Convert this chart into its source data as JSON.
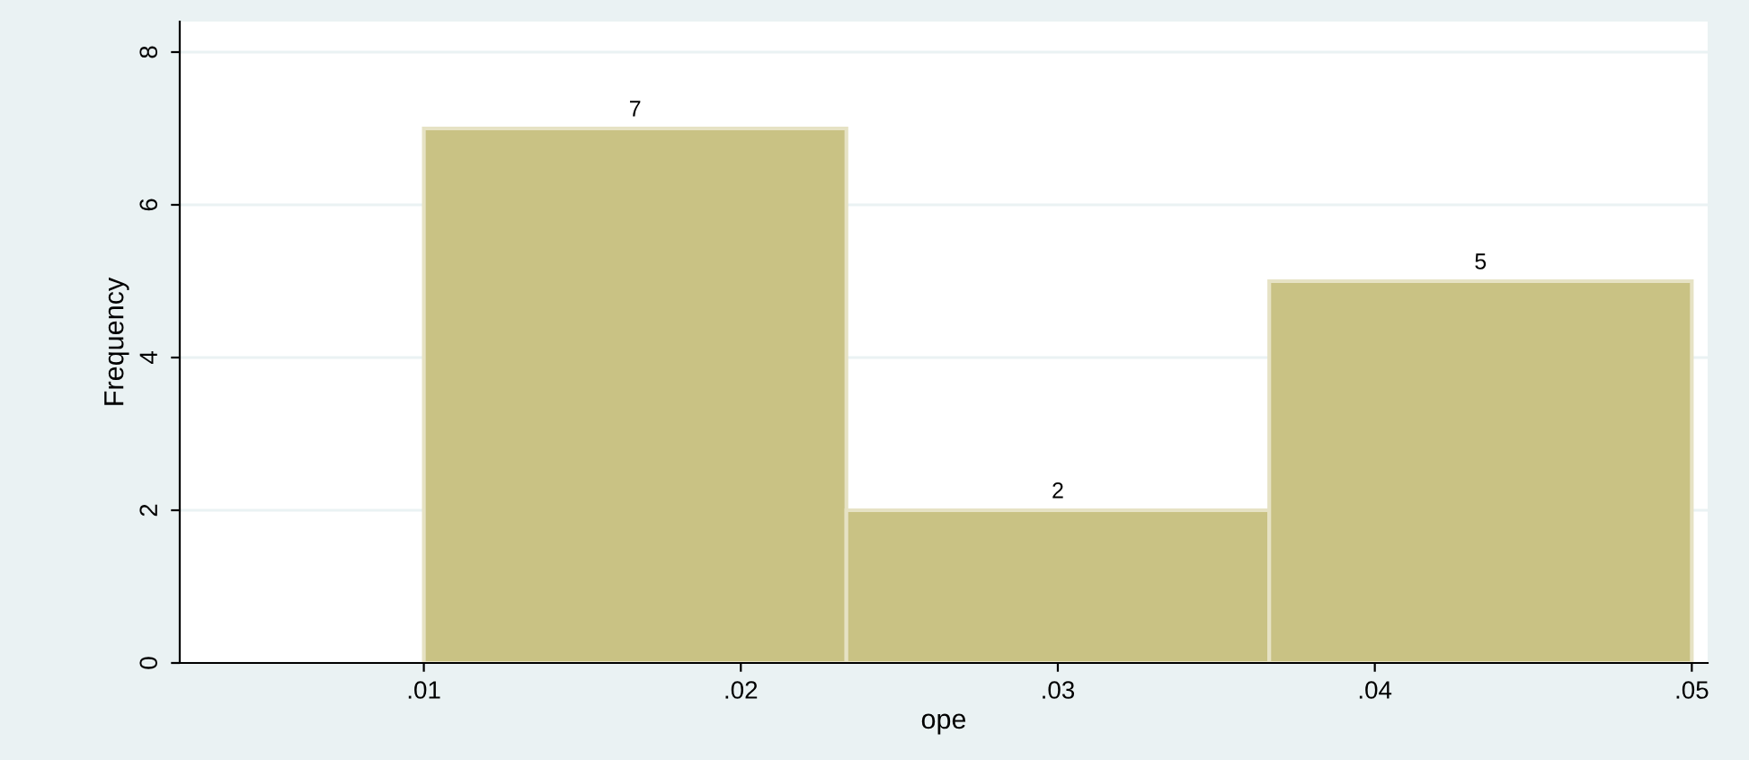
{
  "chart_data": {
    "type": "histogram",
    "xlabel": "ope",
    "ylabel": "Frequency",
    "bins": [
      0.01,
      0.02333,
      0.03667,
      0.05
    ],
    "values": [
      7,
      2,
      5
    ],
    "color": "#c9c284",
    "data_labels": true,
    "xlim": [
      0.0023,
      0.0505
    ],
    "ylim": [
      0,
      8.4
    ],
    "xticks": [
      {
        "value": 0.01,
        "label": ".01"
      },
      {
        "value": 0.02,
        "label": ".02"
      },
      {
        "value": 0.03,
        "label": ".03"
      },
      {
        "value": 0.04,
        "label": ".04"
      },
      {
        "value": 0.05,
        "label": ".05"
      }
    ],
    "yticks": [
      0,
      2,
      4,
      6,
      8
    ],
    "grid": "y"
  }
}
